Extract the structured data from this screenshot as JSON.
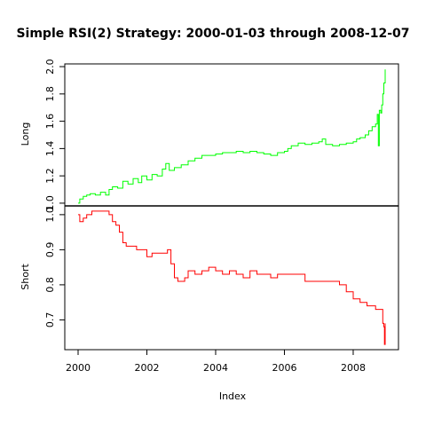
{
  "chart_data": {
    "type": "line",
    "title": "Simple RSI(2) Strategy: 2000-01-03 through 2008-12-07",
    "xlabel": "Index",
    "x_ticks": [
      "2000",
      "2002",
      "2004",
      "2006",
      "2008"
    ],
    "x_range": [
      2000.0,
      2008.93
    ],
    "grid": false,
    "legend": "none",
    "panels": [
      {
        "name": "Long",
        "ylabel": "Long",
        "color": "#00ff00",
        "y_ticks": [
          "1.0",
          "1.2",
          "1.4",
          "1.6",
          "1.8",
          "2.0"
        ],
        "ylim": [
          0.98,
          2.02
        ],
        "points": [
          [
            2000.0,
            1.0
          ],
          [
            2000.05,
            1.03
          ],
          [
            2000.15,
            1.05
          ],
          [
            2000.25,
            1.06
          ],
          [
            2000.35,
            1.07
          ],
          [
            2000.5,
            1.06
          ],
          [
            2000.65,
            1.08
          ],
          [
            2000.8,
            1.06
          ],
          [
            2000.9,
            1.1
          ],
          [
            2001.0,
            1.12
          ],
          [
            2001.15,
            1.11
          ],
          [
            2001.3,
            1.16
          ],
          [
            2001.45,
            1.14
          ],
          [
            2001.6,
            1.18
          ],
          [
            2001.75,
            1.15
          ],
          [
            2001.85,
            1.2
          ],
          [
            2002.0,
            1.17
          ],
          [
            2002.15,
            1.21
          ],
          [
            2002.3,
            1.2
          ],
          [
            2002.45,
            1.25
          ],
          [
            2002.55,
            1.29
          ],
          [
            2002.65,
            1.24
          ],
          [
            2002.8,
            1.26
          ],
          [
            2003.0,
            1.28
          ],
          [
            2003.2,
            1.31
          ],
          [
            2003.4,
            1.33
          ],
          [
            2003.6,
            1.35
          ],
          [
            2003.8,
            1.35
          ],
          [
            2004.0,
            1.36
          ],
          [
            2004.2,
            1.37
          ],
          [
            2004.4,
            1.37
          ],
          [
            2004.6,
            1.38
          ],
          [
            2004.8,
            1.37
          ],
          [
            2005.0,
            1.38
          ],
          [
            2005.2,
            1.37
          ],
          [
            2005.4,
            1.36
          ],
          [
            2005.6,
            1.35
          ],
          [
            2005.8,
            1.37
          ],
          [
            2006.0,
            1.38
          ],
          [
            2006.1,
            1.4
          ],
          [
            2006.2,
            1.42
          ],
          [
            2006.4,
            1.44
          ],
          [
            2006.6,
            1.43
          ],
          [
            2006.8,
            1.44
          ],
          [
            2007.0,
            1.45
          ],
          [
            2007.1,
            1.47
          ],
          [
            2007.2,
            1.43
          ],
          [
            2007.4,
            1.42
          ],
          [
            2007.6,
            1.43
          ],
          [
            2007.8,
            1.44
          ],
          [
            2008.0,
            1.45
          ],
          [
            2008.1,
            1.47
          ],
          [
            2008.2,
            1.48
          ],
          [
            2008.35,
            1.5
          ],
          [
            2008.45,
            1.53
          ],
          [
            2008.55,
            1.56
          ],
          [
            2008.65,
            1.58
          ],
          [
            2008.7,
            1.65
          ],
          [
            2008.73,
            1.42
          ],
          [
            2008.76,
            1.68
          ],
          [
            2008.8,
            1.66
          ],
          [
            2008.83,
            1.72
          ],
          [
            2008.86,
            1.8
          ],
          [
            2008.89,
            1.88
          ],
          [
            2008.93,
            1.98
          ]
        ]
      },
      {
        "name": "Short",
        "ylabel": "Short",
        "color": "#ff0000",
        "y_ticks": [
          "0.7",
          "0.8",
          "0.9",
          "1.0"
        ],
        "ylim": [
          0.615,
          1.025
        ],
        "points": [
          [
            2000.0,
            1.0
          ],
          [
            2000.05,
            0.98
          ],
          [
            2000.15,
            0.99
          ],
          [
            2000.25,
            1.0
          ],
          [
            2000.4,
            1.01
          ],
          [
            2000.5,
            1.01
          ],
          [
            2000.65,
            1.01
          ],
          [
            2000.8,
            1.01
          ],
          [
            2000.9,
            1.0
          ],
          [
            2001.0,
            0.98
          ],
          [
            2001.1,
            0.97
          ],
          [
            2001.2,
            0.95
          ],
          [
            2001.3,
            0.92
          ],
          [
            2001.4,
            0.91
          ],
          [
            2001.55,
            0.91
          ],
          [
            2001.7,
            0.9
          ],
          [
            2001.8,
            0.9
          ],
          [
            2002.0,
            0.88
          ],
          [
            2002.15,
            0.89
          ],
          [
            2002.3,
            0.89
          ],
          [
            2002.5,
            0.89
          ],
          [
            2002.6,
            0.9
          ],
          [
            2002.7,
            0.86
          ],
          [
            2002.8,
            0.82
          ],
          [
            2002.9,
            0.81
          ],
          [
            2003.1,
            0.82
          ],
          [
            2003.2,
            0.84
          ],
          [
            2003.4,
            0.83
          ],
          [
            2003.6,
            0.84
          ],
          [
            2003.8,
            0.85
          ],
          [
            2004.0,
            0.84
          ],
          [
            2004.2,
            0.83
          ],
          [
            2004.4,
            0.84
          ],
          [
            2004.6,
            0.83
          ],
          [
            2004.8,
            0.82
          ],
          [
            2005.0,
            0.84
          ],
          [
            2005.2,
            0.83
          ],
          [
            2005.4,
            0.83
          ],
          [
            2005.6,
            0.82
          ],
          [
            2005.8,
            0.83
          ],
          [
            2006.0,
            0.83
          ],
          [
            2006.2,
            0.83
          ],
          [
            2006.4,
            0.83
          ],
          [
            2006.6,
            0.81
          ],
          [
            2006.8,
            0.81
          ],
          [
            2007.0,
            0.81
          ],
          [
            2007.2,
            0.81
          ],
          [
            2007.4,
            0.81
          ],
          [
            2007.6,
            0.8
          ],
          [
            2007.8,
            0.78
          ],
          [
            2008.0,
            0.76
          ],
          [
            2008.2,
            0.75
          ],
          [
            2008.4,
            0.74
          ],
          [
            2008.55,
            0.74
          ],
          [
            2008.65,
            0.73
          ],
          [
            2008.75,
            0.73
          ],
          [
            2008.82,
            0.73
          ],
          [
            2008.86,
            0.69
          ],
          [
            2008.89,
            0.68
          ],
          [
            2008.91,
            0.63
          ],
          [
            2008.93,
            0.69
          ]
        ]
      }
    ]
  }
}
